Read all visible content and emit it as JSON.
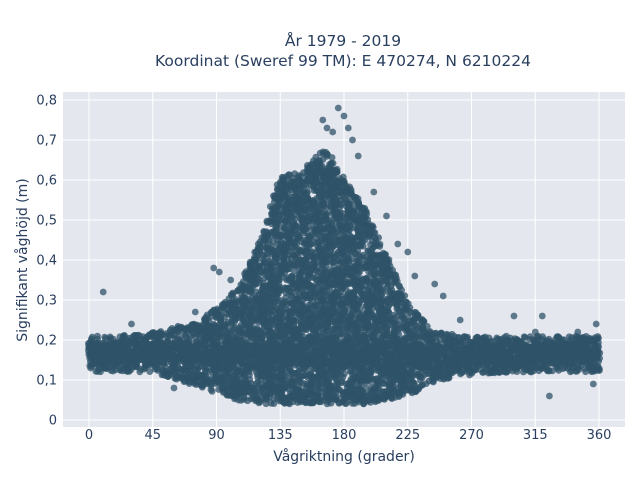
{
  "chart_data": {
    "type": "scatter",
    "title_line1": "År 1979 - 2019",
    "title_line2": "Koordinat (Sweref 99 TM): E 470274, N 6210224",
    "xlabel": "Vågriktning (grader)",
    "ylabel": "Signifikant våghöjd (m)",
    "xlim": [
      -8,
      367
    ],
    "ylim": [
      0,
      0.81
    ],
    "x_ticks": [
      0,
      45,
      90,
      135,
      180,
      225,
      270,
      315,
      360
    ],
    "x_tick_labels": [
      "0",
      "45",
      "90",
      "135",
      "180",
      "225",
      "270",
      "315",
      "360"
    ],
    "y_ticks": [
      0,
      0.1,
      0.2,
      0.3,
      0.4,
      0.5,
      0.6,
      0.7,
      0.8
    ],
    "y_tick_labels": [
      "0",
      "0,1",
      "0,2",
      "0,3",
      "0,4",
      "0,5",
      "0,6",
      "0,7",
      "0,8"
    ],
    "grid": true,
    "marker_color": "#2f5368",
    "background_color": "#e5e7ee",
    "envelope": {
      "x": [
        0,
        20,
        45,
        80,
        105,
        120,
        135,
        150,
        160,
        165,
        170,
        180,
        195,
        210,
        225,
        240,
        260,
        300,
        330,
        360
      ],
      "y_min": [
        0.12,
        0.12,
        0.12,
        0.08,
        0.05,
        0.04,
        0.04,
        0.04,
        0.04,
        0.04,
        0.04,
        0.04,
        0.04,
        0.05,
        0.06,
        0.09,
        0.11,
        0.12,
        0.12,
        0.12
      ],
      "y_max": [
        0.21,
        0.21,
        0.22,
        0.25,
        0.33,
        0.44,
        0.61,
        0.62,
        0.66,
        0.68,
        0.67,
        0.6,
        0.53,
        0.41,
        0.3,
        0.23,
        0.21,
        0.21,
        0.21,
        0.21
      ]
    },
    "outliers": [
      {
        "x": 10,
        "y": 0.32
      },
      {
        "x": 88,
        "y": 0.38
      },
      {
        "x": 92,
        "y": 0.37
      },
      {
        "x": 100,
        "y": 0.35
      },
      {
        "x": 165,
        "y": 0.75
      },
      {
        "x": 168,
        "y": 0.73
      },
      {
        "x": 172,
        "y": 0.72
      },
      {
        "x": 176,
        "y": 0.78
      },
      {
        "x": 180,
        "y": 0.76
      },
      {
        "x": 183,
        "y": 0.73
      },
      {
        "x": 186,
        "y": 0.7
      },
      {
        "x": 190,
        "y": 0.66
      },
      {
        "x": 201,
        "y": 0.57
      },
      {
        "x": 210,
        "y": 0.51
      },
      {
        "x": 218,
        "y": 0.44
      },
      {
        "x": 225,
        "y": 0.42
      },
      {
        "x": 230,
        "y": 0.36
      },
      {
        "x": 244,
        "y": 0.34
      },
      {
        "x": 250,
        "y": 0.31
      },
      {
        "x": 262,
        "y": 0.25
      },
      {
        "x": 300,
        "y": 0.26
      },
      {
        "x": 315,
        "y": 0.22
      },
      {
        "x": 320,
        "y": 0.26
      },
      {
        "x": 325,
        "y": 0.06
      },
      {
        "x": 345,
        "y": 0.22
      },
      {
        "x": 356,
        "y": 0.09
      },
      {
        "x": 358,
        "y": 0.24
      },
      {
        "x": 60,
        "y": 0.08
      },
      {
        "x": 75,
        "y": 0.27
      },
      {
        "x": 30,
        "y": 0.24
      }
    ]
  }
}
